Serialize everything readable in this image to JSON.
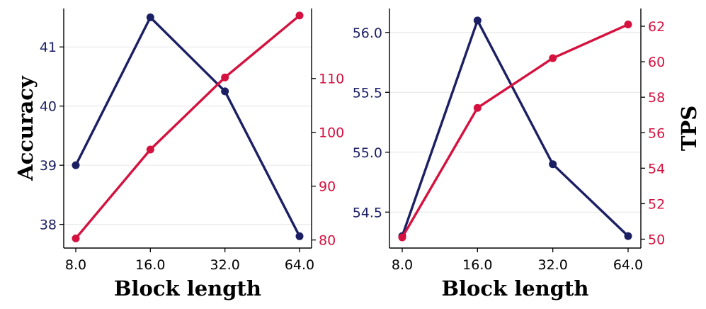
{
  "chart_data": [
    {
      "type": "line",
      "panel": "left",
      "categories": [
        "8.0",
        "16.0",
        "32.0",
        "64.0"
      ],
      "xlabel": "Block length",
      "ylabel_left": "Accuracy",
      "ylabel_right": "",
      "left_axis": {
        "ylim": [
          37.6,
          41.65
        ],
        "ticks": [
          38,
          39,
          40,
          41
        ]
      },
      "right_axis": {
        "ylim": [
          78.5,
          123.0
        ],
        "ticks": [
          80,
          90,
          100,
          110
        ]
      },
      "series": [
        {
          "name": "Accuracy",
          "axis": "left",
          "color": "#1b1f63",
          "values": [
            39.0,
            41.5,
            40.25,
            37.8
          ]
        },
        {
          "name": "TPS",
          "axis": "right",
          "color": "#d5123f",
          "values": [
            80.3,
            96.8,
            110.2,
            121.7
          ]
        }
      ]
    },
    {
      "type": "line",
      "panel": "right",
      "categories": [
        "8.0",
        "16.0",
        "32.0",
        "64.0"
      ],
      "xlabel": "Block length",
      "ylabel_left": "",
      "ylabel_right": "TPS",
      "left_axis": {
        "ylim": [
          54.2,
          56.2
        ],
        "ticks": [
          54.5,
          55.0,
          55.5,
          56.0
        ]
      },
      "right_axis": {
        "ylim": [
          49.5,
          63.0
        ],
        "ticks": [
          50,
          52,
          54,
          56,
          58,
          60,
          62
        ]
      },
      "series": [
        {
          "name": "Accuracy",
          "axis": "left",
          "color": "#1b1f63",
          "values": [
            54.3,
            56.1,
            54.9,
            54.3
          ]
        },
        {
          "name": "TPS",
          "axis": "right",
          "color": "#d5123f",
          "values": [
            50.1,
            57.4,
            60.2,
            62.1
          ]
        }
      ]
    }
  ]
}
